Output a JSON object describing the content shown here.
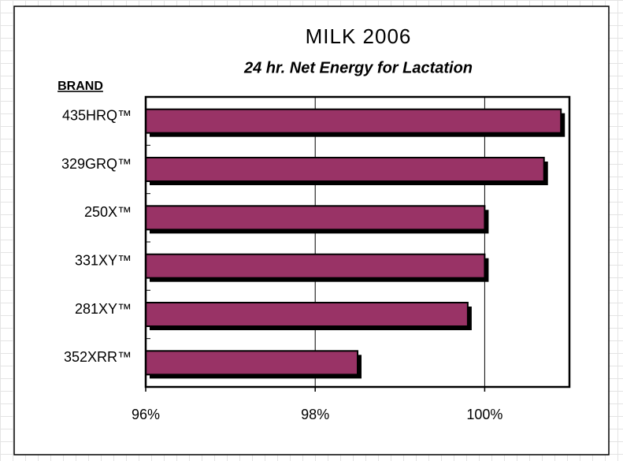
{
  "chart_data": {
    "type": "bar",
    "orientation": "horizontal",
    "title": "MILK 2006",
    "subtitle": "24 hr. Net Energy for Lactation",
    "y_label": "BRAND",
    "categories": [
      "435HRQ™",
      "329GRQ™",
      "250X™",
      "331XY™",
      "281XY™",
      "352XRR™"
    ],
    "values": [
      100.9,
      100.7,
      100.0,
      100.0,
      99.8,
      98.5
    ],
    "color": "#993366",
    "xlim": [
      96,
      101
    ],
    "xticks": [
      {
        "value": 96,
        "label": "96%"
      },
      {
        "value": 98,
        "label": "98%"
      },
      {
        "value": 100,
        "label": "100%"
      }
    ],
    "grid": true
  }
}
